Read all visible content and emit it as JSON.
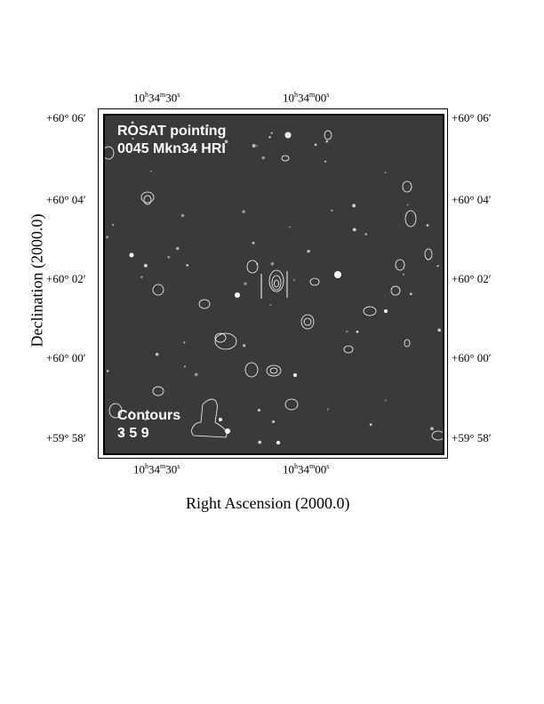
{
  "figure": {
    "overlay_title": [
      "ROSAT pointing",
      "0045 Mkn34 HRI"
    ],
    "contours_label": "Contours",
    "contours_levels": "3 5 9",
    "xlabel": "Right Ascension (2000.0)",
    "ylabel": "Declination (2000.0)",
    "ra_ticks": [
      {
        "h": "10",
        "hu": "h",
        "m": "34",
        "mu": "m",
        "s": "30",
        "su": "s"
      },
      {
        "h": "10",
        "hu": "h",
        "m": "34",
        "mu": "m",
        "s": "00",
        "su": "s"
      }
    ],
    "dec_ticks": [
      "+60° 06′",
      "+60° 04′",
      "+60° 02′",
      "+60° 00′",
      "+59° 58′"
    ],
    "colors": {
      "background": "#3a3a3a",
      "contour": "#ffffff",
      "text": "#ffffff"
    }
  }
}
